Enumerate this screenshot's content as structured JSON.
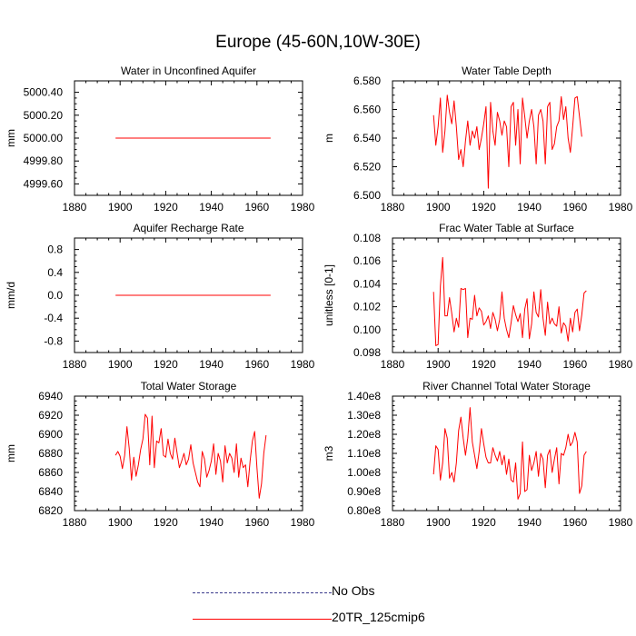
{
  "title": "Europe (45-60N,10W-30E)",
  "colors": {
    "model": "#ff0000",
    "obs": "#3a3a8c",
    "axis": "#000000"
  },
  "legend": [
    {
      "label": "No Obs",
      "style": "dashed",
      "color": "#3a3a8c"
    },
    {
      "label": "20TR_125cmip6",
      "style": "solid",
      "color": "#ff0000"
    }
  ],
  "chart_data": [
    {
      "type": "line",
      "title": "Water in Unconfined Aquifer",
      "ylabel": "mm",
      "xlim": [
        1880,
        1980
      ],
      "ylim": [
        4999.5,
        5000.5
      ],
      "xticks": [
        1880,
        1900,
        1920,
        1940,
        1960,
        1980
      ],
      "yticks": [
        4999.6,
        4999.8,
        5000.0,
        5000.2,
        5000.4
      ],
      "ytick_labels": [
        "4999.60",
        "4999.80",
        "5000.00",
        "5000.20",
        "5000.40"
      ],
      "series": [
        {
          "name": "20TR_125cmip6",
          "x_start": 1898,
          "x_step": 1,
          "values": [
            5000,
            5000,
            5000,
            5000,
            5000,
            5000,
            5000,
            5000,
            5000,
            5000,
            5000,
            5000,
            5000,
            5000,
            5000,
            5000,
            5000,
            5000,
            5000,
            5000,
            5000,
            5000,
            5000,
            5000,
            5000,
            5000,
            5000,
            5000,
            5000,
            5000,
            5000,
            5000,
            5000,
            5000,
            5000,
            5000,
            5000,
            5000,
            5000,
            5000,
            5000,
            5000,
            5000,
            5000,
            5000,
            5000,
            5000,
            5000,
            5000,
            5000,
            5000,
            5000,
            5000,
            5000,
            5000,
            5000,
            5000,
            5000,
            5000,
            5000,
            5000,
            5000,
            5000,
            5000,
            5000,
            5000,
            5000,
            5000,
            5000
          ]
        }
      ]
    },
    {
      "type": "line",
      "title": "Water Table Depth",
      "ylabel": "m",
      "xlim": [
        1880,
        1980
      ],
      "ylim": [
        6.5,
        6.58
      ],
      "xticks": [
        1880,
        1900,
        1920,
        1940,
        1960,
        1980
      ],
      "yticks": [
        6.5,
        6.52,
        6.54,
        6.56,
        6.58
      ],
      "ytick_labels": [
        "6.500",
        "6.520",
        "6.540",
        "6.560",
        "6.580"
      ],
      "series": [
        {
          "name": "20TR_125cmip6",
          "x_start": 1898,
          "x_step": 1,
          "values": [
            6.556,
            6.535,
            6.548,
            6.568,
            6.53,
            6.545,
            6.57,
            6.558,
            6.55,
            6.566,
            6.548,
            6.525,
            6.532,
            6.52,
            6.538,
            6.552,
            6.535,
            6.545,
            6.54,
            6.548,
            6.532,
            6.54,
            6.55,
            6.562,
            6.505,
            6.565,
            6.545,
            6.535,
            6.558,
            6.552,
            6.542,
            6.552,
            6.548,
            6.52,
            6.562,
            6.565,
            6.535,
            6.56,
            6.522,
            6.568,
            6.555,
            6.54,
            6.552,
            6.56,
            6.548,
            6.522,
            6.556,
            6.56,
            6.552,
            6.522,
            6.562,
            6.565,
            6.532,
            6.536,
            6.548,
            6.552,
            6.569,
            6.553,
            6.562,
            6.54,
            6.53,
            6.548,
            6.568,
            6.569,
            6.555,
            6.541
          ]
        }
      ]
    },
    {
      "type": "line",
      "title": "Aquifer Recharge Rate",
      "ylabel": "mm/d",
      "xlim": [
        1880,
        1980
      ],
      "ylim": [
        -1.0,
        1.0
      ],
      "xticks": [
        1880,
        1900,
        1920,
        1940,
        1960,
        1980
      ],
      "yticks": [
        -0.8,
        -0.4,
        0.0,
        0.4,
        0.8
      ],
      "ytick_labels": [
        "-0.8",
        "-0.4",
        "0.0",
        "0.4",
        "0.8"
      ],
      "series": [
        {
          "name": "20TR_125cmip6",
          "x_start": 1898,
          "x_step": 1,
          "values": [
            0,
            0,
            0,
            0,
            0,
            0,
            0,
            0,
            0,
            0,
            0,
            0,
            0,
            0,
            0,
            0,
            0,
            0,
            0,
            0,
            0,
            0,
            0,
            0,
            0,
            0,
            0,
            0,
            0,
            0,
            0,
            0,
            0,
            0,
            0,
            0,
            0,
            0,
            0,
            0,
            0,
            0,
            0,
            0,
            0,
            0,
            0,
            0,
            0,
            0,
            0,
            0,
            0,
            0,
            0,
            0,
            0,
            0,
            0,
            0,
            0,
            0,
            0,
            0,
            0,
            0,
            0,
            0,
            0
          ]
        }
      ]
    },
    {
      "type": "line",
      "title": "Frac Water Table at Surface",
      "ylabel": "unitless [0-1]",
      "xlim": [
        1880,
        1980
      ],
      "ylim": [
        0.098,
        0.108
      ],
      "xticks": [
        1880,
        1900,
        1920,
        1940,
        1960,
        1980
      ],
      "yticks": [
        0.098,
        0.1,
        0.102,
        0.104,
        0.106,
        0.108
      ],
      "ytick_labels": [
        "0.098",
        "0.100",
        "0.102",
        "0.104",
        "0.106",
        "0.108"
      ],
      "series": [
        {
          "name": "20TR_125cmip6",
          "x_start": 1898,
          "x_step": 1,
          "values": [
            0.1033,
            0.0986,
            0.0987,
            0.1038,
            0.1063,
            0.1012,
            0.1012,
            0.1028,
            0.1014,
            0.0998,
            0.101,
            0.1002,
            0.1036,
            0.1035,
            0.1036,
            0.0993,
            0.101,
            0.1009,
            0.103,
            0.1012,
            0.1019,
            0.1016,
            0.1004,
            0.1007,
            0.1012,
            0.1001,
            0.1015,
            0.1009,
            0.0999,
            0.1009,
            0.1033,
            0.101,
            0.1,
            0.0993,
            0.1006,
            0.1021,
            0.1013,
            0.1007,
            0.1014,
            0.0993,
            0.1018,
            0.1027,
            0.0992,
            0.1005,
            0.1033,
            0.1015,
            0.1011,
            0.1035,
            0.101,
            0.0995,
            0.1024,
            0.1005,
            0.101,
            0.1005,
            0.1003,
            0.102,
            0.0997,
            0.1006,
            0.1003,
            0.099,
            0.101,
            0.0998,
            0.1015,
            0.1018,
            0.0999,
            0.1013,
            0.1032,
            0.1034
          ]
        }
      ]
    },
    {
      "type": "line",
      "title": "Total Water Storage",
      "ylabel": "mm",
      "xlim": [
        1880,
        1980
      ],
      "ylim": [
        6820,
        6940
      ],
      "xticks": [
        1880,
        1900,
        1920,
        1940,
        1960,
        1980
      ],
      "yticks": [
        6820,
        6840,
        6860,
        6880,
        6900,
        6920,
        6940
      ],
      "ytick_labels": [
        "6820",
        "6840",
        "6860",
        "6880",
        "6900",
        "6920",
        "6940"
      ],
      "series": [
        {
          "name": "20TR_125cmip6",
          "x_start": 1898,
          "x_step": 1,
          "values": [
            6878,
            6882,
            6877,
            6864,
            6878,
            6908,
            6885,
            6852,
            6876,
            6856,
            6868,
            6884,
            6895,
            6921,
            6917,
            6868,
            6919,
            6865,
            6893,
            6891,
            6906,
            6878,
            6876,
            6895,
            6880,
            6874,
            6896,
            6880,
            6865,
            6872,
            6880,
            6868,
            6874,
            6889,
            6870,
            6860,
            6850,
            6845,
            6882,
            6874,
            6855,
            6862,
            6872,
            6890,
            6858,
            6880,
            6872,
            6850,
            6888,
            6870,
            6880,
            6875,
            6860,
            6890,
            6855,
            6875,
            6865,
            6868,
            6845,
            6872,
            6893,
            6903,
            6865,
            6833,
            6848,
            6880,
            6899
          ]
        }
      ]
    },
    {
      "type": "line",
      "title": "River Channel Total Water Storage",
      "ylabel": "m3",
      "xlim": [
        1880,
        1980
      ],
      "ylim": [
        80000000.0,
        140000000.0
      ],
      "xticks": [
        1880,
        1900,
        1920,
        1940,
        1960,
        1980
      ],
      "yticks": [
        80000000.0,
        90000000.0,
        100000000.0,
        110000000.0,
        120000000.0,
        130000000.0,
        140000000.0
      ],
      "ytick_labels": [
        "0.80e8",
        "0.90e8",
        "1.00e8",
        "1.10e8",
        "1.20e8",
        "1.30e8",
        "1.40e8"
      ],
      "series": [
        {
          "name": "20TR_125cmip6",
          "x_start": 1898,
          "x_step": 1,
          "values": [
            99000000.0,
            114000000.0,
            112000000.0,
            96000000.0,
            105000000.0,
            123000000.0,
            118000000.0,
            97000000.0,
            100000000.0,
            95000000.0,
            105000000.0,
            122000000.0,
            129000000.0,
            118000000.0,
            109000000.0,
            118000000.0,
            134000000.0,
            116000000.0,
            109000000.0,
            102000000.0,
            111000000.0,
            123000000.0,
            115000000.0,
            108000000.0,
            105000000.0,
            105000000.0,
            113000000.0,
            109000000.0,
            106000000.0,
            111000000.0,
            104000000.0,
            109000000.0,
            99000000.0,
            107000000.0,
            96000000.0,
            95000000.0,
            105000000.0,
            86000000.0,
            89000000.0,
            116000000.0,
            90000000.0,
            91000000.0,
            109000000.0,
            101000000.0,
            105000000.0,
            111000000.0,
            98000000.0,
            110000000.0,
            107000000.0,
            92000000.0,
            109000000.0,
            112000000.0,
            100000000.0,
            107000000.0,
            113000000.0,
            94000000.0,
            110000000.0,
            109000000.0,
            113000000.0,
            120000000.0,
            114000000.0,
            116000000.0,
            121000000.0,
            116000000.0,
            89000000.0,
            93000000.0,
            109000000.0,
            111000000.0
          ]
        }
      ]
    }
  ]
}
